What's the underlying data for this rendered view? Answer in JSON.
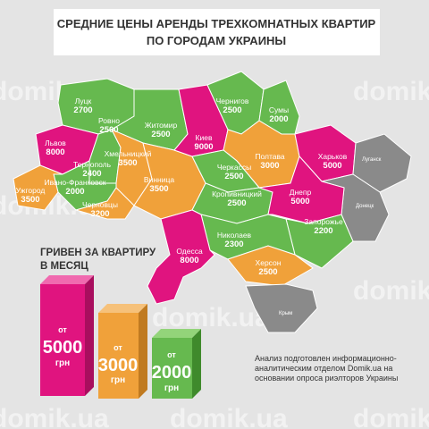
{
  "title": [
    "СРЕДНИЕ ЦЕНЫ АРЕНДЫ ТРЕХКОМНАТНЫХ КВАРТИР",
    "ПО ГОРОДАМ УКРАИНЫ"
  ],
  "cities": [
    {
      "name": "Луцк",
      "price": "2700"
    },
    {
      "name": "Ровно",
      "price": "2500"
    },
    {
      "name": "Житомир",
      "price": "2500"
    },
    {
      "name": "Чернигов",
      "price": "2500"
    },
    {
      "name": "Сумы",
      "price": "2000"
    },
    {
      "name": "Киев",
      "price": "9000"
    },
    {
      "name": "Львов",
      "price": "8000"
    },
    {
      "name": "Хмельницкий",
      "price": "3500"
    },
    {
      "name": "Тернополь",
      "price": "2400"
    },
    {
      "name": "Винница",
      "price": "3500"
    },
    {
      "name": "Черкассы",
      "price": "2500"
    },
    {
      "name": "Полтава",
      "price": "3000"
    },
    {
      "name": "Харьков",
      "price": "5000"
    },
    {
      "name": "Ужгород",
      "price": "3500"
    },
    {
      "name": "Ивано-Франковск",
      "price": "2000"
    },
    {
      "name": "Черновцы",
      "price": "3200"
    },
    {
      "name": "Кропивницкий",
      "price": "2500"
    },
    {
      "name": "Днепр",
      "price": "5000"
    },
    {
      "name": "Запорожье",
      "price": "2200"
    },
    {
      "name": "Николаев",
      "price": "2300"
    },
    {
      "name": "Одесса",
      "price": "8000"
    },
    {
      "name": "Херсон",
      "price": "2500"
    }
  ],
  "other_labels": [
    "Луганск",
    "Донецк",
    "Крым"
  ],
  "legend": {
    "title": [
      "ГРИВЕН ЗА КВАРТИРУ",
      "В МЕСЯЦ"
    ],
    "bars": [
      {
        "prefix": "от",
        "value": "5000",
        "unit": "грн"
      },
      {
        "prefix": "от",
        "value": "3000",
        "unit": "грн"
      },
      {
        "prefix": "от",
        "value": "2000",
        "unit": "грн"
      }
    ]
  },
  "note": [
    "Анализ подготовлен информационно-",
    "аналитическим отделом Domik.ua на",
    "основании опроса риэлторов Украины"
  ],
  "watermark": "domik.ua"
}
